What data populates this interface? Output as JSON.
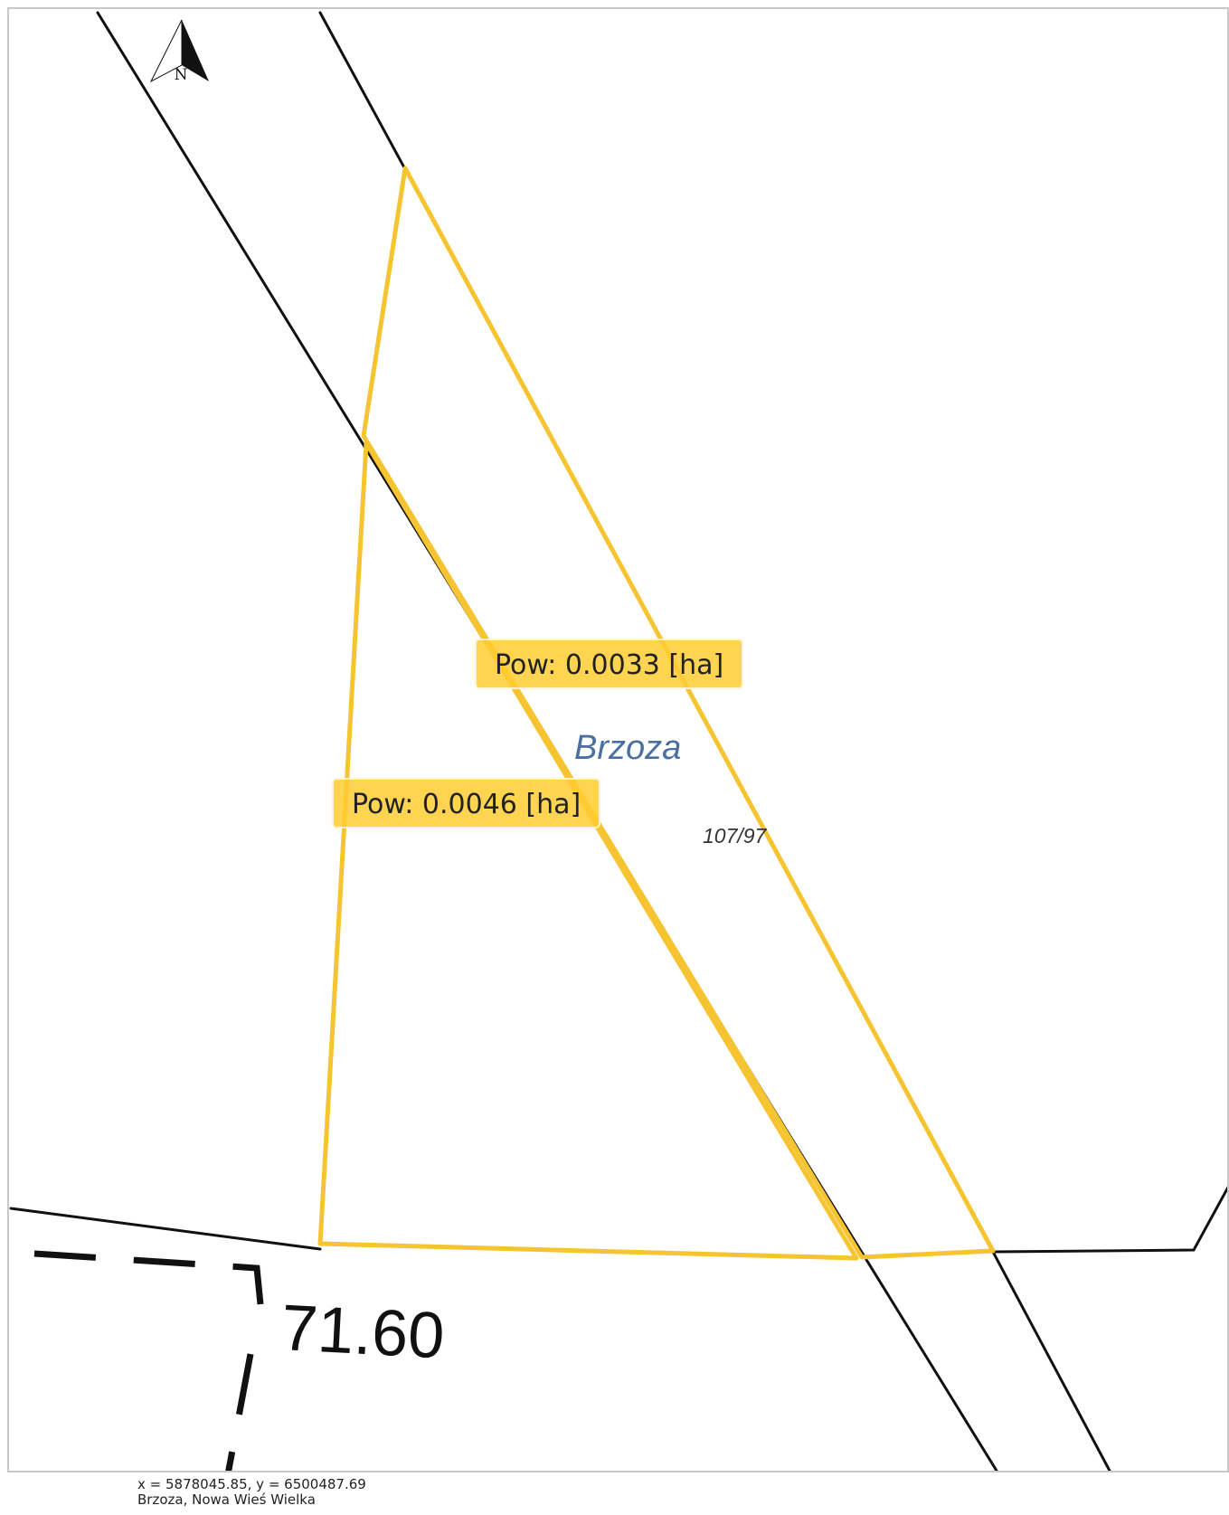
{
  "map": {
    "north_arrow_label": "N",
    "place_label": "Brzoza",
    "parcel_number": "107/97",
    "elevation_label": "71.60",
    "highlight_color": "#f5c430",
    "area_labels": [
      {
        "text": "Pow: 0.0033 [ha]"
      },
      {
        "text": "Pow: 0.0046 [ha]"
      }
    ]
  },
  "footer": {
    "coordinates": "x = 5878045.85, y = 6500487.69",
    "location": "Brzoza, Nowa Wieś Wielka"
  }
}
